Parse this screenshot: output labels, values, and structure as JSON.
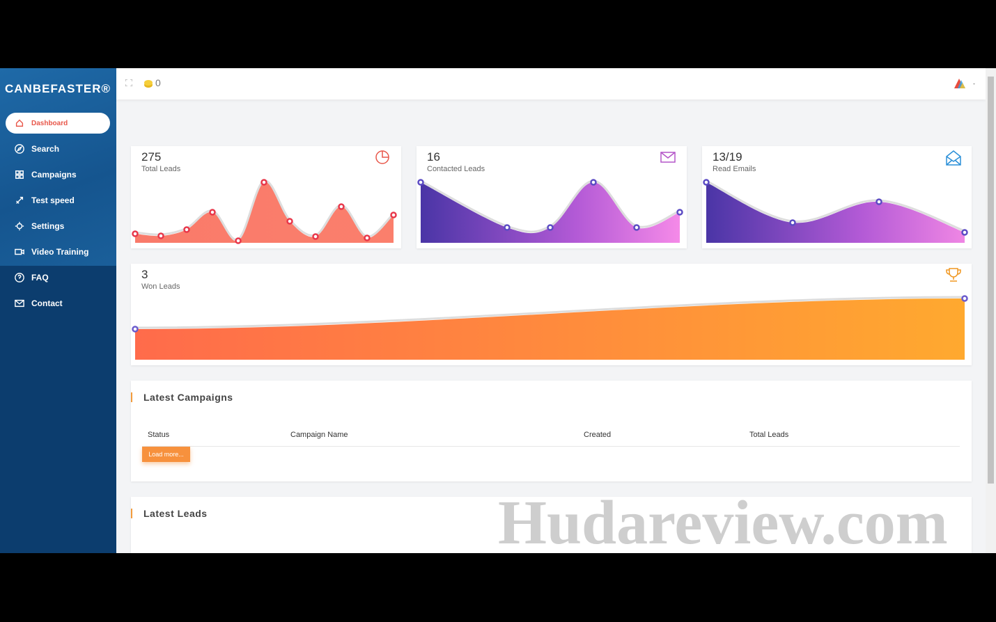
{
  "brand": "CANBEFASTER®",
  "header": {
    "coins": "0"
  },
  "nav": [
    "Dashboard",
    "Search",
    "Campaigns",
    "Test speed",
    "Settings",
    "Video Training",
    "FAQ",
    "Contact"
  ],
  "stats": [
    {
      "value": 275,
      "label": "Total Leads"
    },
    {
      "value": 16,
      "label": "Contacted Leads"
    },
    {
      "value": "13/19",
      "label": "Read Emails"
    },
    {
      "value": 3,
      "label": "Won Leads"
    }
  ],
  "campaigns": {
    "title": "Latest Campaigns",
    "columns": [
      "Status",
      "Campaign Name",
      "Created",
      "Total Leads"
    ],
    "button": "Load more..."
  },
  "leads": {
    "title": "Latest Leads"
  },
  "watermark": "Hudareview.com"
}
